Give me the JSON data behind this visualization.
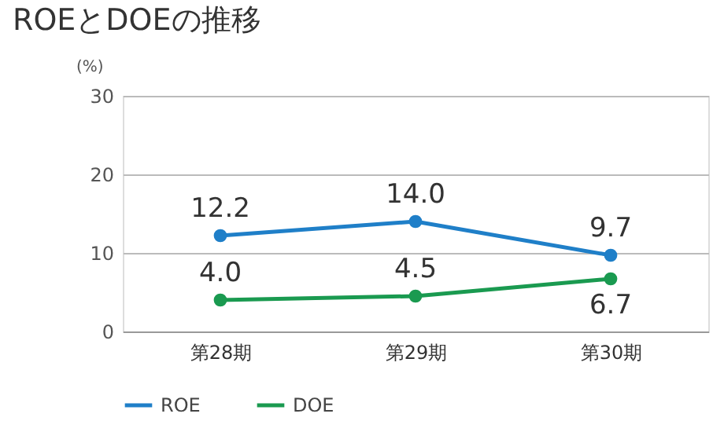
{
  "chart_data": {
    "type": "line",
    "title": "ROEとDOEの推移",
    "ylabel": "(%)",
    "categories": [
      "第28期",
      "第29期",
      "第30期"
    ],
    "series": [
      {
        "name": "ROE",
        "color": "#1f7fc8",
        "values": [
          12.2,
          14.0,
          9.7
        ],
        "value_labels": [
          "12.2",
          "14.0",
          "9.7"
        ]
      },
      {
        "name": "DOE",
        "color": "#1a9a50",
        "values": [
          4.0,
          4.5,
          6.7
        ],
        "value_labels": [
          "4.0",
          "4.5",
          "6.7"
        ]
      }
    ],
    "ylim": [
      0,
      30
    ],
    "yticks": [
      0,
      10,
      20,
      30
    ],
    "grid": "y",
    "legend": "bottom",
    "marker": "circle",
    "line_style": "solid"
  }
}
